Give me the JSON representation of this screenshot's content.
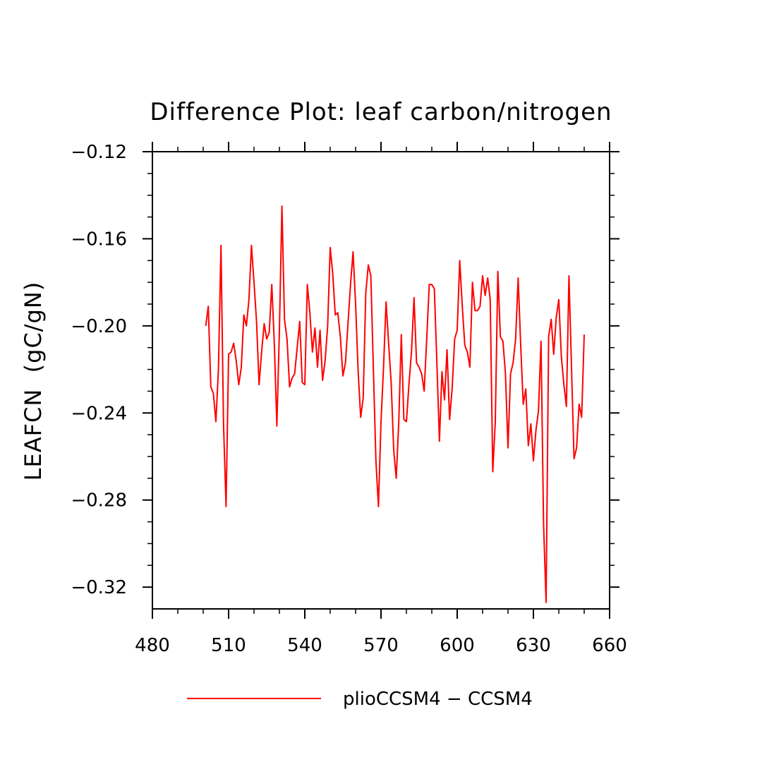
{
  "chart_data": {
    "type": "line",
    "title": "Difference Plot: leaf carbon/nitrogen",
    "xlabel": "",
    "ylabel": "LEAFCN  (gC/gN)",
    "xlim": [
      480,
      660
    ],
    "ylim": [
      -0.33,
      -0.12
    ],
    "xticks": [
      480,
      510,
      540,
      570,
      600,
      630,
      660
    ],
    "yticks": [
      -0.32,
      -0.28,
      -0.24,
      -0.2,
      -0.16,
      -0.12
    ],
    "xtick_labels": [
      "480",
      "510",
      "540",
      "570",
      "600",
      "630",
      "660"
    ],
    "ytick_labels": [
      "−0.32",
      "−0.28",
      "−0.24",
      "−0.20",
      "−0.16",
      "−0.12"
    ],
    "grid": false,
    "legend_position": "bottom-center",
    "series": [
      {
        "name": "plioCCSM4 − CCSM4",
        "color": "#ff0000",
        "x": [
          501,
          502,
          503,
          504,
          505,
          506,
          507,
          508,
          509,
          510,
          511,
          512,
          513,
          514,
          515,
          516,
          517,
          518,
          519,
          520,
          521,
          522,
          523,
          524,
          525,
          526,
          527,
          528,
          529,
          530,
          531,
          532,
          533,
          534,
          535,
          536,
          537,
          538,
          539,
          540,
          541,
          542,
          543,
          544,
          545,
          546,
          547,
          548,
          549,
          550,
          551,
          552,
          553,
          554,
          555,
          556,
          557,
          558,
          559,
          560,
          561,
          562,
          563,
          564,
          565,
          566,
          567,
          568,
          569,
          570,
          571,
          572,
          573,
          574,
          575,
          576,
          577,
          578,
          579,
          580,
          581,
          582,
          583,
          584,
          585,
          586,
          587,
          588,
          589,
          590,
          591,
          592,
          593,
          594,
          595,
          596,
          597,
          598,
          599,
          600,
          601,
          602,
          603,
          604,
          605,
          606,
          607,
          608,
          609,
          610,
          611,
          612,
          613,
          614,
          615,
          616,
          617,
          618,
          619,
          620,
          621,
          622,
          623,
          624,
          625,
          626,
          627,
          628,
          629,
          630,
          631,
          632,
          633,
          634,
          635,
          636,
          637,
          638,
          639,
          640,
          641,
          642,
          643,
          644,
          645,
          646,
          647,
          648,
          649,
          650
        ],
        "y": [
          -0.2,
          -0.191,
          -0.228,
          -0.231,
          -0.244,
          -0.22,
          -0.163,
          -0.245,
          -0.283,
          -0.213,
          -0.212,
          -0.208,
          -0.216,
          -0.227,
          -0.219,
          -0.195,
          -0.2,
          -0.188,
          -0.163,
          -0.18,
          -0.198,
          -0.227,
          -0.212,
          -0.199,
          -0.206,
          -0.203,
          -0.181,
          -0.208,
          -0.246,
          -0.202,
          -0.145,
          -0.197,
          -0.206,
          -0.228,
          -0.224,
          -0.222,
          -0.21,
          -0.198,
          -0.226,
          -0.227,
          -0.181,
          -0.194,
          -0.212,
          -0.201,
          -0.219,
          -0.202,
          -0.225,
          -0.216,
          -0.2,
          -0.164,
          -0.176,
          -0.195,
          -0.194,
          -0.205,
          -0.223,
          -0.217,
          -0.199,
          -0.181,
          -0.166,
          -0.19,
          -0.221,
          -0.242,
          -0.233,
          -0.185,
          -0.172,
          -0.177,
          -0.22,
          -0.262,
          -0.283,
          -0.244,
          -0.219,
          -0.189,
          -0.208,
          -0.226,
          -0.257,
          -0.27,
          -0.244,
          -0.204,
          -0.243,
          -0.244,
          -0.227,
          -0.212,
          -0.187,
          -0.217,
          -0.219,
          -0.222,
          -0.23,
          -0.206,
          -0.181,
          -0.181,
          -0.183,
          -0.217,
          -0.253,
          -0.221,
          -0.234,
          -0.211,
          -0.243,
          -0.229,
          -0.206,
          -0.202,
          -0.17,
          -0.191,
          -0.209,
          -0.212,
          -0.219,
          -0.18,
          -0.193,
          -0.193,
          -0.191,
          -0.177,
          -0.186,
          -0.178,
          -0.188,
          -0.267,
          -0.244,
          -0.175,
          -0.205,
          -0.207,
          -0.222,
          -0.256,
          -0.222,
          -0.217,
          -0.206,
          -0.178,
          -0.209,
          -0.236,
          -0.229,
          -0.255,
          -0.245,
          -0.262,
          -0.248,
          -0.239,
          -0.207,
          -0.291,
          -0.327,
          -0.205,
          -0.197,
          -0.213,
          -0.196,
          -0.188,
          -0.214,
          -0.227,
          -0.237,
          -0.177,
          -0.219,
          -0.261,
          -0.256,
          -0.236,
          -0.242,
          -0.204
        ]
      }
    ]
  }
}
